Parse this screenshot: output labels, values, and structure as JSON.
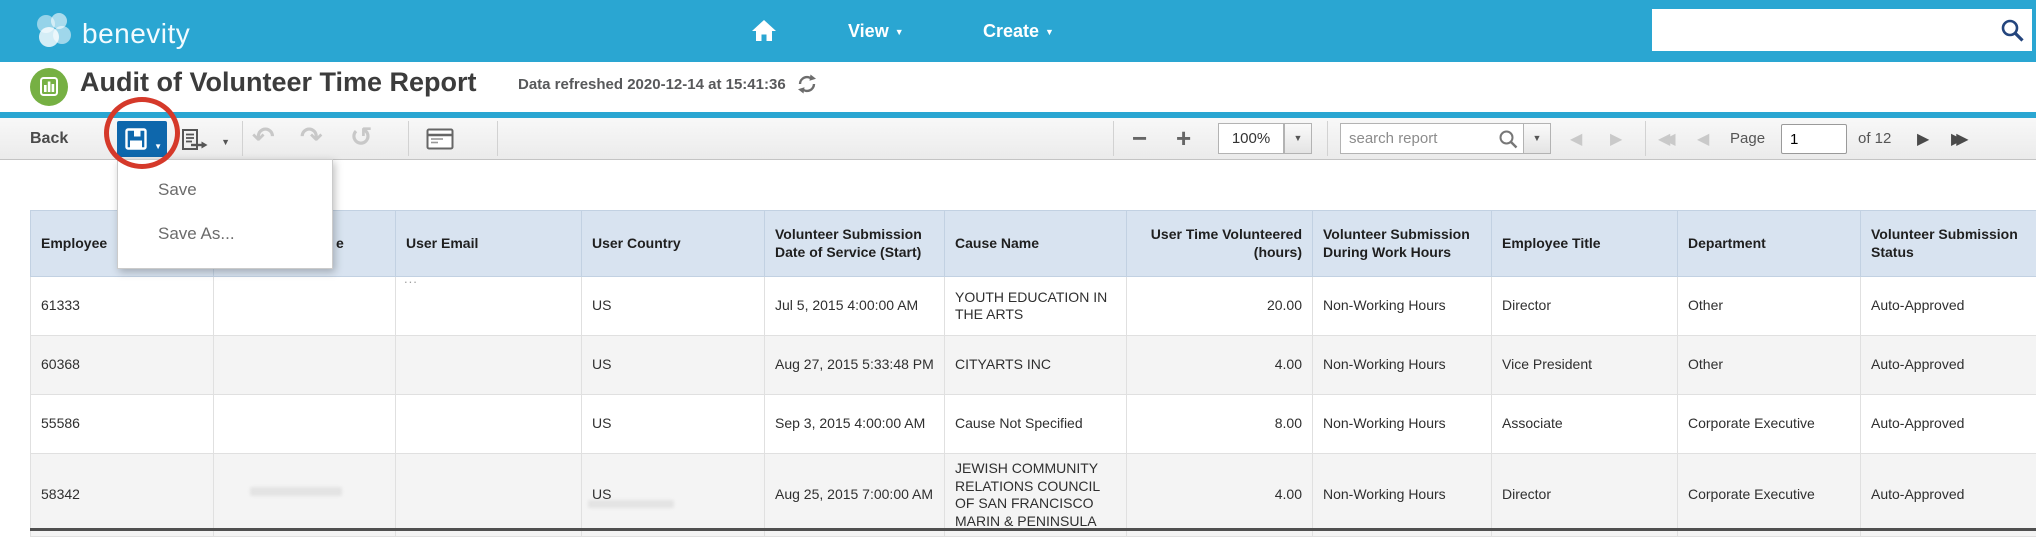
{
  "topbar": {
    "brand": "benevity",
    "nav_view": "View",
    "nav_create": "Create",
    "search_value": ""
  },
  "report_header": {
    "title": "Audit of Volunteer Time Report",
    "refresh_note": "Data refreshed 2020-12-14 at 15:41:36"
  },
  "toolbar": {
    "back": "Back",
    "zoom_value": "100%",
    "search_placeholder": "search report",
    "page_label": "Page",
    "page_value": "1",
    "page_total": "of 12"
  },
  "save_menu": {
    "items": [
      "Save",
      "Save As..."
    ]
  },
  "table": {
    "columns": [
      {
        "id": "employee",
        "label": "Employee"
      },
      {
        "id": "obscured",
        "label": "e"
      },
      {
        "id": "user-email",
        "label": "User Email"
      },
      {
        "id": "user-country",
        "label": "User Country"
      },
      {
        "id": "submission-date",
        "label": "Volunteer Submission Date of Service (Start)"
      },
      {
        "id": "cause-name",
        "label": "Cause Name"
      },
      {
        "id": "time-volunteered",
        "label": "User Time Volunteered (hours)",
        "align": "right"
      },
      {
        "id": "during-work-hours",
        "label": "Volunteer Submission During Work Hours"
      },
      {
        "id": "employee-title",
        "label": "Employee Title"
      },
      {
        "id": "department",
        "label": "Department"
      },
      {
        "id": "submission-status",
        "label": "Volunteer Submission Status"
      }
    ],
    "rows": [
      [
        "61333",
        "",
        "",
        "US",
        "Jul 5, 2015 4:00:00 AM",
        "YOUTH EDUCATION IN THE ARTS",
        "20.00",
        "Non-Working Hours",
        "Director",
        "Other",
        "Auto-Approved"
      ],
      [
        "60368",
        "",
        "",
        "US",
        "Aug 27, 2015 5:33:48 PM",
        "CITYARTS INC",
        "4.00",
        "Non-Working Hours",
        "Vice President",
        "Other",
        "Auto-Approved"
      ],
      [
        "55586",
        "",
        "",
        "US",
        "Sep 3, 2015 4:00:00 AM",
        "Cause Not Specified",
        "8.00",
        "Non-Working Hours",
        "Associate",
        "Corporate Executive",
        "Auto-Approved"
      ],
      [
        "58342",
        "",
        "",
        "US",
        "Aug 25, 2015 7:00:00 AM",
        "JEWISH COMMUNITY RELATIONS COUNCIL OF SAN FRANCISCO MARIN & PENINSULA",
        "4.00",
        "Non-Working Hours",
        "Director",
        "Corporate Executive",
        "Auto-Approved"
      ]
    ],
    "redacted_artifact": "..."
  },
  "colors": {
    "brand_blue": "#2aa6d2",
    "save_button_blue": "#0e67ac",
    "brand_green": "#76b043",
    "annotation_red": "#d5392a",
    "table_header_blue": "#d8e3f0"
  }
}
